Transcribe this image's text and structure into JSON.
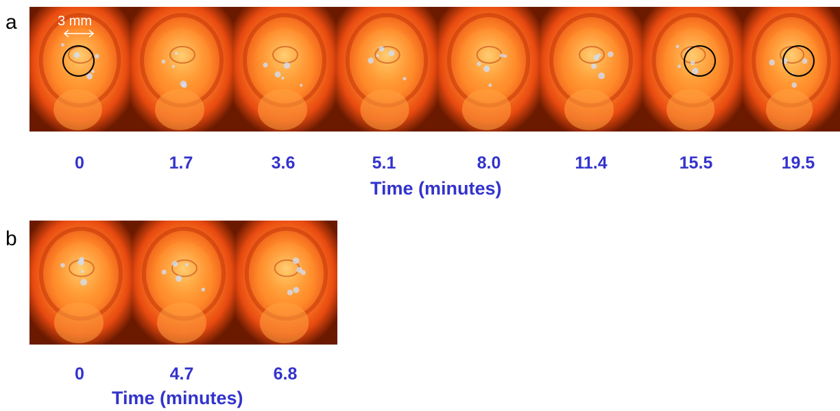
{
  "panel_a": {
    "letter": "a",
    "scale_bar": "3 mm",
    "frames": [
      {
        "time": "0",
        "circled": true
      },
      {
        "time": "1.7",
        "circled": false
      },
      {
        "time": "3.6",
        "circled": false
      },
      {
        "time": "5.1",
        "circled": false
      },
      {
        "time": "8.0",
        "circled": false
      },
      {
        "time": "11.4",
        "circled": false
      },
      {
        "time": "15.5",
        "circled": true
      },
      {
        "time": "19.5",
        "circled": true
      }
    ],
    "axis_title": "Time (minutes)"
  },
  "panel_b": {
    "letter": "b",
    "frames": [
      {
        "time": "0"
      },
      {
        "time": "4.7"
      },
      {
        "time": "6.8"
      }
    ],
    "axis_title": "Time (minutes)"
  },
  "colors": {
    "label_blue": "#3333cc",
    "frame_dark": "#6b1a00",
    "frame_mid": "#e84a10",
    "frame_bright": "#ffb040"
  }
}
